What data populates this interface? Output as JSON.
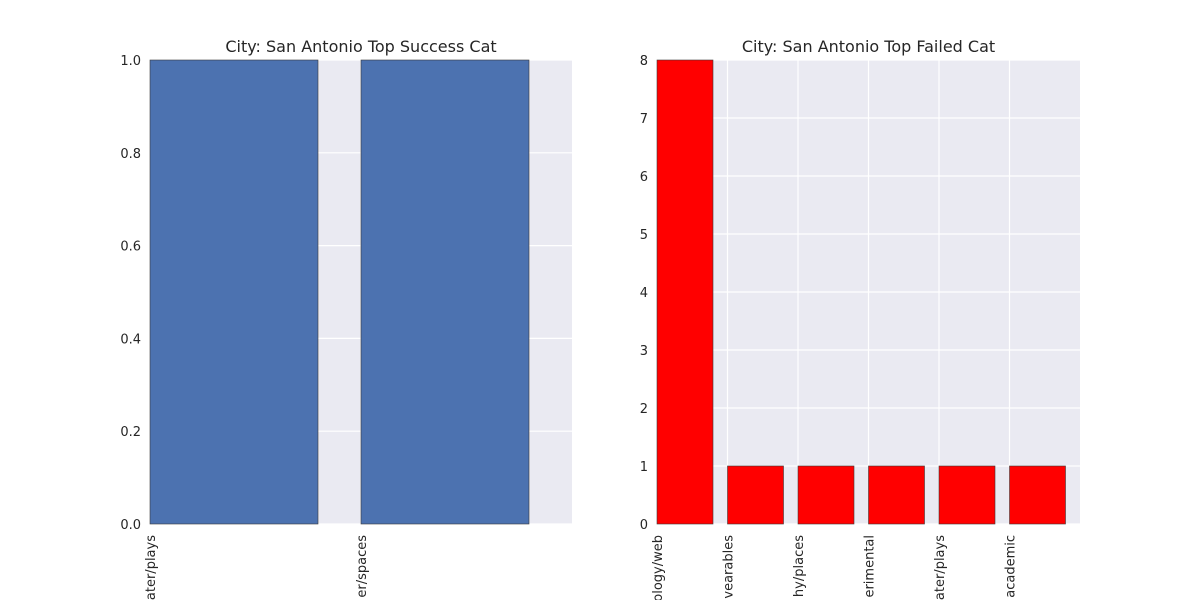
{
  "chart_data": [
    {
      "type": "bar",
      "title": "City: San Antonio Top Success Cat",
      "categories": [
        "ater/plays",
        "er/spaces"
      ],
      "values": [
        1,
        1
      ],
      "ylim": [
        0,
        1
      ],
      "yticks": [
        "0.0",
        "0.2",
        "0.4",
        "0.6",
        "0.8",
        "1.0"
      ],
      "grid": true,
      "bar_color": "#4c72b0"
    },
    {
      "type": "bar",
      "title": "City: San Antonio Top Failed Cat",
      "categories": [
        "ology/web",
        "vearables",
        "hy/places",
        "erimental",
        "ater/plays",
        "academic"
      ],
      "values": [
        8,
        1,
        1,
        1,
        1,
        1
      ],
      "ylim": [
        0,
        8
      ],
      "yticks": [
        "0",
        "1",
        "2",
        "3",
        "4",
        "5",
        "6",
        "7",
        "8"
      ],
      "grid": true,
      "bar_color": "#ff0000"
    }
  ],
  "style": {
    "plot_background": "#eaeaf2",
    "grid_color": "#ffffff"
  }
}
